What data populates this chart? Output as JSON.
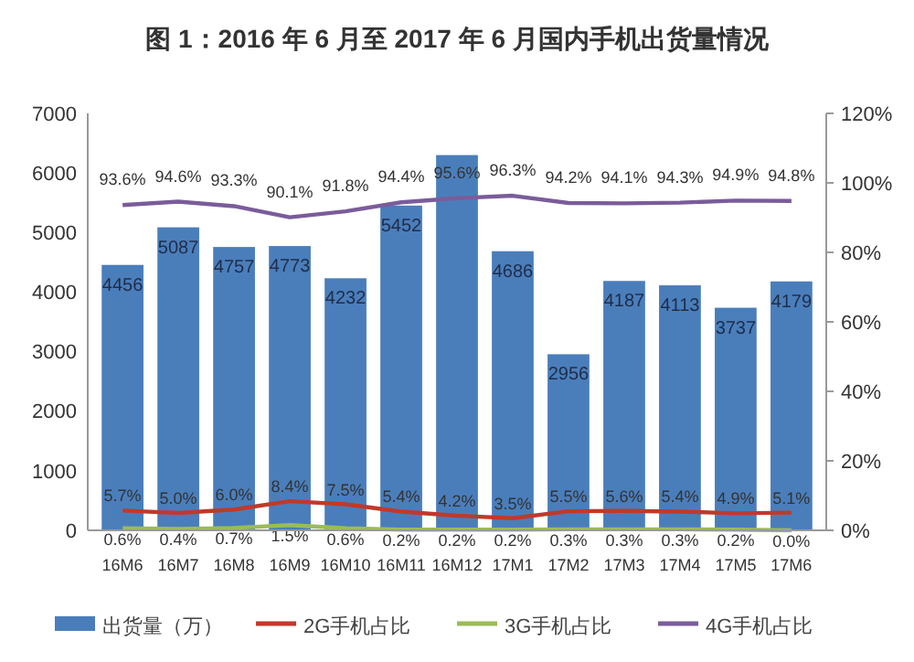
{
  "chart_data": {
    "type": "bar",
    "title": "图 1：2016 年 6 月至 2017 年 6 月国内手机出货量情况",
    "categories": [
      "16M6",
      "16M7",
      "16M8",
      "16M9",
      "16M10",
      "16M11",
      "16M12",
      "17M1",
      "17M2",
      "17M3",
      "17M4",
      "17M5",
      "17M6"
    ],
    "ylim": [
      0,
      7000
    ],
    "yticks": [
      0,
      1000,
      2000,
      3000,
      4000,
      5000,
      6000,
      7000
    ],
    "y2lim": [
      0,
      120
    ],
    "y2ticks": [
      {
        "value": 0,
        "label": "0%"
      },
      {
        "value": 20,
        "label": "20%"
      },
      {
        "value": 40,
        "label": "40%"
      },
      {
        "value": 60,
        "label": "60%"
      },
      {
        "value": 80,
        "label": "80%"
      },
      {
        "value": 100,
        "label": "100%"
      },
      {
        "value": 120,
        "label": "120%"
      }
    ],
    "legend": "bottom",
    "grid": false,
    "series": [
      {
        "name": "出货量（万）",
        "color": "#4a7ebb",
        "values": [
          4456,
          5087,
          4757,
          4773,
          4232,
          5452,
          6300,
          4686,
          2956,
          4187,
          4113,
          3737,
          4179
        ],
        "value_labels": [
          "4456",
          "5087",
          "4757",
          "4773",
          "4232",
          "5452",
          null,
          "4686",
          "2956",
          "4187",
          "4113",
          "3737",
          "4179"
        ]
      },
      {
        "name": "2G手机占比",
        "type": "line",
        "axis": "y2",
        "color": "#c0392b",
        "values": [
          5.7,
          5.0,
          6.0,
          8.4,
          7.5,
          5.4,
          4.2,
          3.5,
          5.5,
          5.6,
          5.4,
          4.9,
          5.1
        ],
        "value_labels": [
          "5.7%",
          "5.0%",
          "6.0%",
          "8.4%",
          "7.5%",
          "5.4%",
          "4.2%",
          "3.5%",
          "5.5%",
          "5.6%",
          "5.4%",
          "4.9%",
          "5.1%"
        ]
      },
      {
        "name": "3G手机占比",
        "type": "line",
        "axis": "y2",
        "color": "#9bbb59",
        "values": [
          0.6,
          0.4,
          0.7,
          1.5,
          0.6,
          0.2,
          0.2,
          0.2,
          0.3,
          0.3,
          0.3,
          0.2,
          0.0
        ],
        "value_labels": [
          "0.6%",
          "0.4%",
          "0.7%",
          "1.5%",
          "0.6%",
          "0.2%",
          "0.2%",
          "0.2%",
          "0.3%",
          "0.3%",
          "0.3%",
          "0.2%",
          "0.0%"
        ]
      },
      {
        "name": "4G手机占比",
        "type": "line",
        "axis": "y2",
        "color": "#7a5c9a",
        "values": [
          93.6,
          94.6,
          93.3,
          90.1,
          91.8,
          94.4,
          95.6,
          96.3,
          94.2,
          94.1,
          94.3,
          94.9,
          94.8
        ],
        "value_labels": [
          "93.6%",
          "94.6%",
          "93.3%",
          "90.1%",
          "91.8%",
          "94.4%",
          "95.6%",
          "96.3%",
          "94.2%",
          "94.1%",
          "94.3%",
          "94.9%",
          "94.8%"
        ]
      }
    ]
  }
}
